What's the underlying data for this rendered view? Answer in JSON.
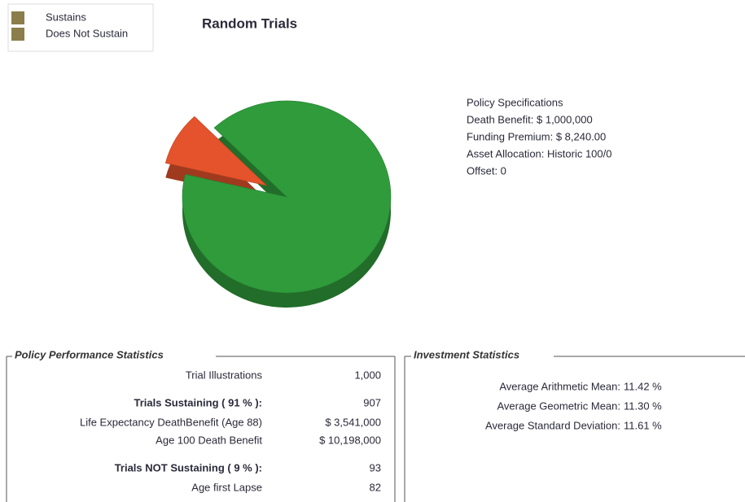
{
  "chart_data": {
    "type": "pie",
    "title": "Random Trials",
    "categories": [
      "Sustains",
      "Does Not Sustain"
    ],
    "values": [
      91,
      9
    ],
    "colors": [
      "#2f9b3b",
      "#e4532b"
    ],
    "legend_color": "#8c7e4c"
  },
  "policy_specifications": {
    "title": "Policy Specifications",
    "lines": [
      "Death Benefit:  $ 1,000,000",
      "Funding Premium:  $ 8,240.00",
      "Asset Allocation: Historic 100/0",
      "Offset: 0"
    ]
  },
  "policy_performance": {
    "title": "Policy Performance Statistics",
    "rows": [
      {
        "label": "Trial Illustrations",
        "value": "1,000",
        "bold": false
      },
      {
        "label": "Trials Sustaining ( 91 % ):",
        "value": "907",
        "bold": true
      },
      {
        "label": "Life Expectancy DeathBenefit (Age 88)",
        "value": "$ 3,541,000",
        "bold": false
      },
      {
        "label": "Age 100 Death Benefit",
        "value": "$ 10,198,000",
        "bold": false
      },
      {
        "label": "Trials NOT Sustaining ( 9 % ):",
        "value": "93",
        "bold": true
      },
      {
        "label": "Age first Lapse",
        "value": "82",
        "bold": false
      }
    ]
  },
  "investment_statistics": {
    "title": "Investment Statistics",
    "rows": [
      {
        "label": "Average Arithmetic Mean:",
        "value": "11.42 %"
      },
      {
        "label": "Average Geometric Mean:",
        "value": "11.30 %"
      },
      {
        "label": "Average Standard Deviation:",
        "value": "11.61 %"
      }
    ]
  }
}
